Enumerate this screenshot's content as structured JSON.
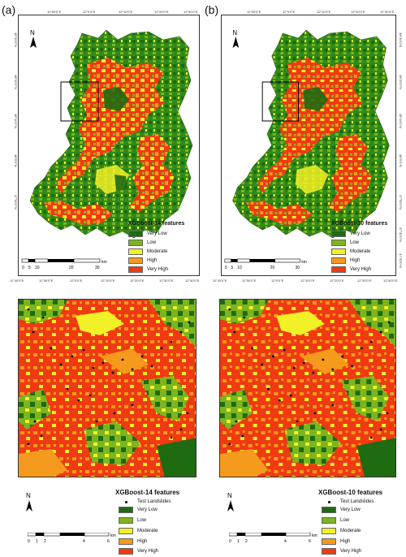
{
  "panels": [
    {
      "id": "a",
      "letter": "(a)",
      "title": "XGBoost-14 features"
    },
    {
      "id": "b",
      "letter": "(b)",
      "title": "XGBoost-10 features"
    }
  ],
  "top_coords": {
    "lon_top": [
      "11°50'0\"E",
      "12°0'0\"E",
      "12°10'0\"E",
      "12°20'0\"E",
      "12°30'0\"E"
    ],
    "lon_bottom": [
      "11°40'0\"E",
      "11°50'0\"E",
      "12°0'0\"E",
      "12°10'0\"E",
      "12°20'0\"E",
      "12°30'0\"E",
      "12°40'0\"E"
    ],
    "lat": [
      "48°30'0\"N",
      "48°20'0\"N",
      "48°10'0\"N",
      "48°0'0\"N",
      "47°50'0\"N",
      "47°40'0\"N",
      "47°30'0\"N"
    ]
  },
  "legend": {
    "classes": [
      {
        "label": "Very Low",
        "color": "#1e6b12"
      },
      {
        "label": "Low",
        "color": "#7cb51f"
      },
      {
        "label": "Moderate",
        "color": "#f2f026"
      },
      {
        "label": "High",
        "color": "#f59a1c"
      },
      {
        "label": "Very High",
        "color": "#ef3a12"
      }
    ],
    "test_landslides": "Test Landslides"
  },
  "scale_top": {
    "ticks": [
      "0",
      "5",
      "10",
      "20",
      "30"
    ],
    "unit": "km"
  },
  "scale_bottom": {
    "ticks": [
      "0",
      "1",
      "2",
      "4",
      "6"
    ],
    "unit": "km"
  },
  "north_label": "N"
}
